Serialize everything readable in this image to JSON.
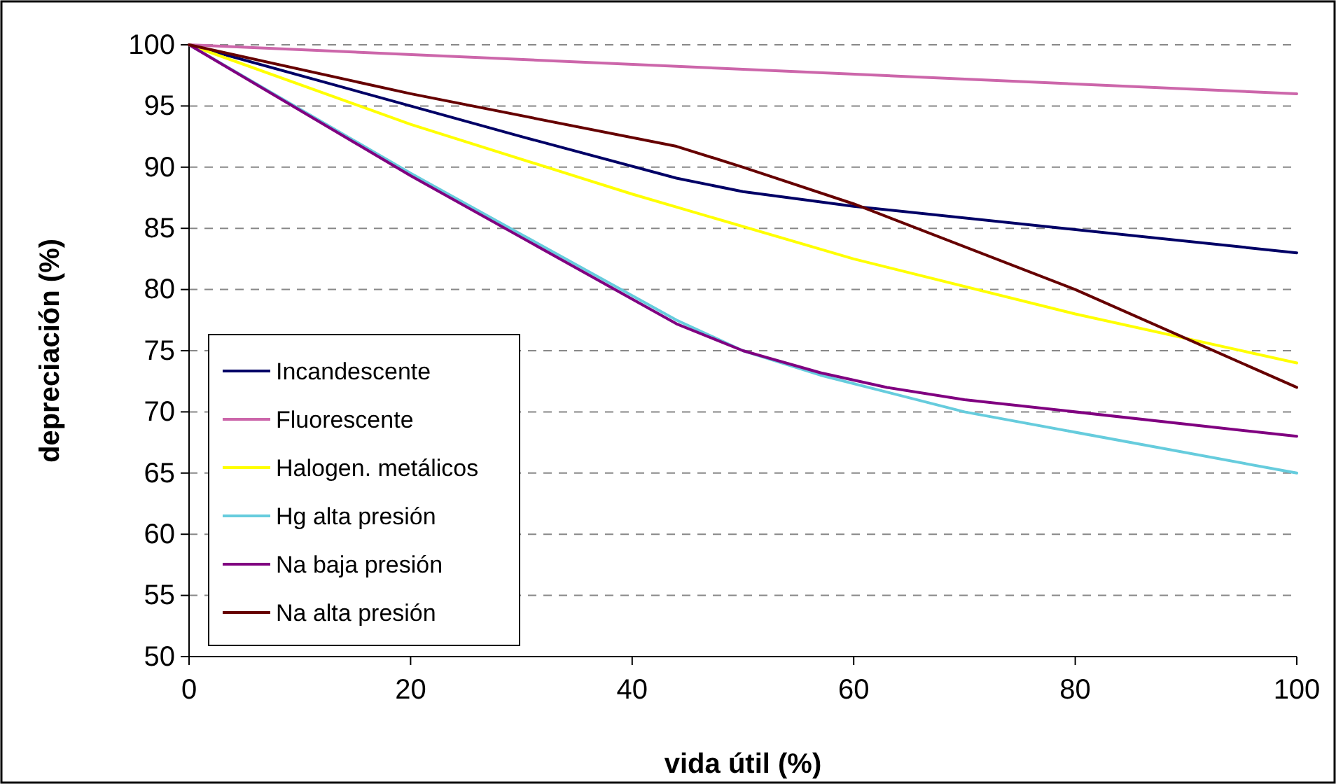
{
  "chart_data": {
    "type": "line",
    "xlabel": "vida útil (%)",
    "ylabel": "depreciación (%)",
    "xlim": [
      0,
      100
    ],
    "xticks": [
      0,
      20,
      40,
      60,
      80,
      100
    ],
    "ylim": [
      50,
      100
    ],
    "yticks": [
      50,
      55,
      60,
      65,
      70,
      75,
      80,
      85,
      90,
      95,
      100
    ],
    "grid": "y",
    "legend": "bottom left",
    "marker": "none",
    "line_style": "solid",
    "series": [
      {
        "name": "Incandescente",
        "color": "#000066",
        "x": [
          0,
          20,
          30,
          44,
          50,
          60,
          100
        ],
        "values": [
          100,
          95,
          92.5,
          89.1,
          88,
          86.8,
          83
        ]
      },
      {
        "name": "Fluorescente",
        "color": "#cc66aa",
        "x": [
          0,
          100
        ],
        "values": [
          100,
          96
        ]
      },
      {
        "name": "Halogen. metálicos",
        "color": "#ffff00",
        "x": [
          0,
          20,
          40,
          60,
          80,
          100
        ],
        "values": [
          100,
          93.5,
          87.8,
          82.5,
          78,
          74
        ]
      },
      {
        "name": "Hg alta presión",
        "color": "#66ccdd",
        "x": [
          0,
          20,
          30,
          44,
          50,
          57,
          70,
          100
        ],
        "values": [
          100,
          89.5,
          84.5,
          77.5,
          75,
          73,
          70,
          65
        ]
      },
      {
        "name": "Na baja presión",
        "color": "#800080",
        "x": [
          0,
          20,
          44,
          50,
          57,
          63,
          70,
          100
        ],
        "values": [
          100,
          89.3,
          77.2,
          75,
          73.2,
          72,
          71,
          68
        ]
      },
      {
        "name": "Na alta presión",
        "color": "#660000",
        "x": [
          0,
          20,
          44,
          50,
          60,
          80,
          100
        ],
        "values": [
          100,
          96,
          91.7,
          90,
          87,
          80,
          72
        ]
      }
    ]
  }
}
